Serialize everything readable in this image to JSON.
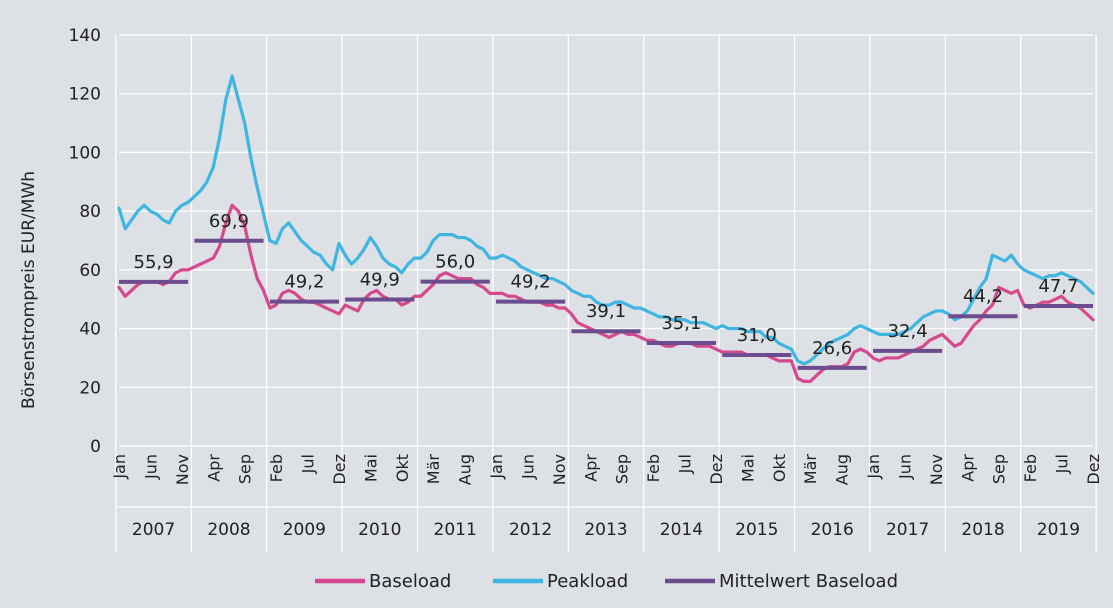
{
  "chart_data": {
    "type": "line",
    "ylabel": "Börsenstrompreis EUR/MWh",
    "xlabel": "",
    "ylim": [
      0,
      140
    ],
    "yticks": [
      0,
      20,
      40,
      60,
      80,
      100,
      120,
      140
    ],
    "grid": "horizontal",
    "legend_position": "bottom",
    "x_start": "Jan 2007",
    "x_end": "Dez 2019",
    "years": [
      "2007",
      "2008",
      "2009",
      "2010",
      "2011",
      "2012",
      "2013",
      "2014",
      "2015",
      "2016",
      "2017",
      "2018",
      "2019"
    ],
    "month_tick_labels": [
      [
        "Jan",
        "Jun",
        "Nov"
      ],
      [
        "Apr",
        "Sep"
      ],
      [
        "Feb",
        "Jul",
        "Dez"
      ],
      [
        "Mai",
        "Okt"
      ],
      [
        "Mär",
        "Aug"
      ],
      [
        "Jan",
        "Jun",
        "Nov"
      ],
      [
        "Apr",
        "Sep"
      ],
      [
        "Feb",
        "Jul",
        "Dez"
      ],
      [
        "Mai",
        "Okt"
      ],
      [
        "Mär",
        "Aug"
      ],
      [
        "Jan",
        "Jun",
        "Nov"
      ],
      [
        "Apr",
        "Sep"
      ],
      [
        "Feb",
        "Jul",
        "Dez"
      ]
    ],
    "tick_months": [
      [
        1,
        6,
        11
      ],
      [
        4,
        9
      ],
      [
        2,
        7,
        12
      ],
      [
        5,
        10
      ],
      [
        3,
        8
      ],
      [
        1,
        6,
        11
      ],
      [
        4,
        9
      ],
      [
        2,
        7,
        12
      ],
      [
        5,
        10
      ],
      [
        3,
        8
      ],
      [
        1,
        6,
        11
      ],
      [
        4,
        9
      ],
      [
        2,
        7,
        12
      ]
    ],
    "series": [
      {
        "name": "Baseload",
        "color": "#d6498f",
        "values": [
          54,
          51,
          53,
          55,
          56,
          56,
          56,
          55,
          56,
          59,
          60,
          60,
          61,
          62,
          63,
          64,
          68,
          76,
          82,
          80,
          75,
          65,
          57,
          53,
          47,
          48,
          52,
          53,
          52,
          50,
          49,
          49,
          48,
          47,
          46,
          45,
          48,
          47,
          46,
          50,
          52,
          53,
          51,
          50,
          50,
          48,
          49,
          51,
          51,
          53,
          55,
          58,
          59,
          58,
          57,
          57,
          57,
          55,
          54,
          52,
          52,
          52,
          51,
          51,
          50,
          49,
          49,
          49,
          48,
          48,
          47,
          47,
          45,
          42,
          41,
          40,
          39,
          38,
          37,
          38,
          39,
          38,
          38,
          37,
          36,
          36,
          35,
          34,
          34,
          35,
          35,
          35,
          34,
          34,
          34,
          33,
          32,
          32,
          32,
          32,
          31,
          31,
          31,
          31,
          30,
          29,
          29,
          29,
          23,
          22,
          22,
          24,
          26,
          27,
          27,
          27,
          28,
          32,
          33,
          32,
          30,
          29,
          30,
          30,
          30,
          31,
          32,
          33,
          34,
          36,
          37,
          38,
          36,
          34,
          35,
          38,
          41,
          43,
          46,
          48,
          54,
          53,
          52,
          53,
          48,
          47,
          48,
          49,
          49,
          50,
          51,
          49,
          48,
          47,
          45,
          43
        ]
      },
      {
        "name": "Peakload",
        "color": "#3fb5e2",
        "values": [
          81,
          74,
          77,
          80,
          82,
          80,
          79,
          77,
          76,
          80,
          82,
          83,
          85,
          87,
          90,
          95,
          105,
          118,
          126,
          118,
          110,
          98,
          88,
          79,
          70,
          69,
          74,
          76,
          73,
          70,
          68,
          66,
          65,
          62,
          60,
          69,
          65,
          62,
          64,
          67,
          71,
          68,
          64,
          62,
          61,
          59,
          62,
          64,
          64,
          66,
          70,
          72,
          72,
          72,
          71,
          71,
          70,
          68,
          67,
          64,
          64,
          65,
          64,
          63,
          61,
          60,
          59,
          58,
          57,
          57,
          56,
          55,
          53,
          52,
          51,
          51,
          49,
          48,
          48,
          49,
          49,
          48,
          47,
          47,
          46,
          45,
          44,
          44,
          43,
          43,
          43,
          42,
          42,
          42,
          41,
          40,
          41,
          40,
          40,
          40,
          39,
          39,
          39,
          37,
          37,
          35,
          34,
          33,
          29,
          28,
          29,
          31,
          33,
          35,
          36,
          37,
          38,
          40,
          41,
          40,
          39,
          38,
          38,
          38,
          38,
          39,
          40,
          42,
          44,
          45,
          46,
          46,
          45,
          43,
          44,
          46,
          50,
          54,
          57,
          65,
          64,
          63,
          65,
          62,
          60,
          59,
          58,
          57,
          58,
          58,
          59,
          58,
          57,
          56,
          54,
          52
        ]
      },
      {
        "name": "Mittelwert Baseload",
        "color": "#6b4c8e",
        "type": "step",
        "values": [
          55.9,
          69.9,
          49.2,
          49.9,
          56.0,
          49.2,
          39.1,
          35.1,
          31.0,
          26.6,
          32.4,
          44.2,
          47.7
        ],
        "labels": [
          "55,9",
          "69,9",
          "49,2",
          "49,9",
          "56,0",
          "49,2",
          "39,1",
          "35,1",
          "31,0",
          "26,6",
          "32,4",
          "44,2",
          "47,7"
        ]
      }
    ]
  }
}
